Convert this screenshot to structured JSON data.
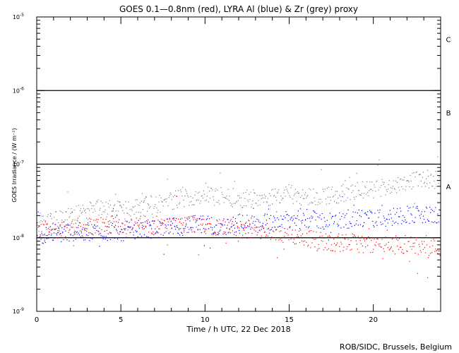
{
  "chart_data": {
    "type": "scatter",
    "title": "GOES 0.1—0.8nm (red), LYRA Al (blue) & Zr (grey) proxy",
    "xlabel": "Time / h UTC, 22 Dec 2018",
    "ylabel": "GOES Irradiance / (W m⁻²)",
    "xlim": [
      0,
      24
    ],
    "ylim": [
      1e-09,
      1e-05
    ],
    "yscale": "log",
    "x_ticks": [
      {
        "value": 0,
        "label": "0"
      },
      {
        "value": 5,
        "label": "5"
      },
      {
        "value": 10,
        "label": "10"
      },
      {
        "value": 15,
        "label": "15"
      },
      {
        "value": 20,
        "label": "20"
      }
    ],
    "y_ticks": [
      {
        "value": 1e-09,
        "base": "10",
        "exp": "-9"
      },
      {
        "value": 1e-08,
        "base": "10",
        "exp": "-8"
      },
      {
        "value": 1e-07,
        "base": "10",
        "exp": "-7"
      },
      {
        "value": 1e-06,
        "base": "10",
        "exp": "-6"
      },
      {
        "value": 1e-05,
        "base": "10",
        "exp": "-5"
      }
    ],
    "flare_classes": [
      {
        "label": "A",
        "value": 5e-08
      },
      {
        "label": "B",
        "value": 5e-07
      },
      {
        "label": "C",
        "value": 5e-06
      }
    ],
    "threshold_lines": [
      1e-08,
      1e-07,
      1e-06
    ],
    "series": [
      {
        "name": "GOES 0.1—0.8nm",
        "color": "#ff0000",
        "x": [
          0,
          1,
          2,
          3,
          4,
          5,
          6,
          7,
          8,
          9,
          10,
          11,
          12,
          13,
          14,
          15,
          16,
          17,
          18,
          19,
          20,
          21,
          22,
          23,
          24
        ],
        "y": [
          1.2e-08,
          1.3e-08,
          1.4e-08,
          1.4e-08,
          1.5e-08,
          1.5e-08,
          1.5e-08,
          1.5e-08,
          1.4e-08,
          1.5e-08,
          1.5e-08,
          1.4e-08,
          1.3e-08,
          1.3e-08,
          1.2e-08,
          1.1e-08,
          1e-08,
          9e-09,
          8.5e-09,
          8.5e-09,
          8e-09,
          8e-09,
          8e-09,
          7.5e-09,
          7.5e-09
        ]
      },
      {
        "name": "LYRA Al proxy",
        "color": "#0000ff",
        "x": [
          0,
          1,
          2,
          3,
          4,
          5,
          6,
          7,
          8,
          9,
          10,
          11,
          12,
          13,
          14,
          15,
          16,
          17,
          18,
          19,
          20,
          21,
          22,
          23,
          24
        ],
        "y": [
          1.1e-08,
          1.1e-08,
          1.2e-08,
          1.2e-08,
          1.2e-08,
          1.2e-08,
          1.3e-08,
          1.3e-08,
          1.4e-08,
          1.5e-08,
          1.5e-08,
          1.4e-08,
          1.6e-08,
          1.5e-08,
          1.7e-08,
          1.7e-08,
          1.8e-08,
          1.7e-08,
          1.7e-08,
          1.8e-08,
          1.8e-08,
          1.9e-08,
          2.1e-08,
          2e-08,
          2e-08
        ]
      },
      {
        "name": "LYRA Zr proxy",
        "color": "#808080",
        "x": [
          0,
          1,
          2,
          3,
          4,
          5,
          6,
          7,
          8,
          9,
          10,
          11,
          12,
          13,
          14,
          15,
          16,
          17,
          18,
          19,
          20,
          21,
          22,
          23,
          24
        ],
        "y": [
          1.6e-08,
          1.7e-08,
          1.9e-08,
          2.3e-08,
          2.5e-08,
          2.5e-08,
          2.6e-08,
          2.8e-08,
          3.2e-08,
          3.6e-08,
          3.8e-08,
          3.7e-08,
          3.4e-08,
          3.5e-08,
          3.6e-08,
          4e-08,
          3.6e-08,
          3.7e-08,
          3.9e-08,
          4.3e-08,
          4.5e-08,
          5.1e-08,
          5.9e-08,
          6.3e-08,
          6e-08
        ]
      }
    ]
  },
  "credit": "ROB/SIDC, Brussels, Belgium"
}
